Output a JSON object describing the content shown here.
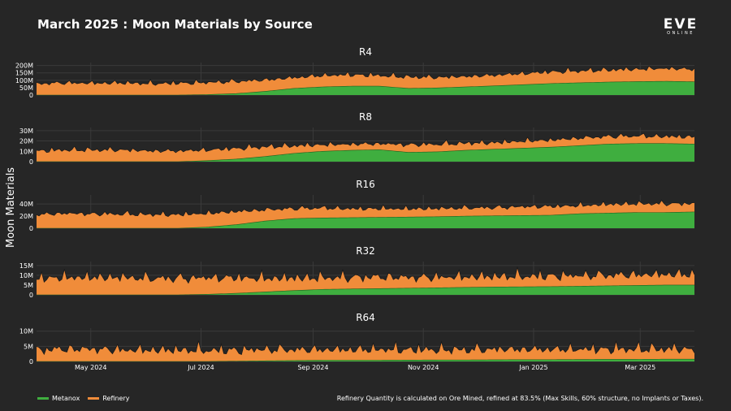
{
  "title": "March 2025 : Moon Materials by Source",
  "logo": {
    "main": "EVE",
    "sub": "ONLINE"
  },
  "ylabel": "Moon Materials",
  "note": "Refinery Quantity is calculated on Ore Mined, refined at 83.5% (Max Skills, 60% structure, no Implants or Taxes).",
  "colors": {
    "metanox": "#3fae3f",
    "refinery": "#f08c3a",
    "grid": "#3a3a3a",
    "background": "#262626"
  },
  "legend": [
    {
      "label": "Metanox",
      "color": "#3fae3f"
    },
    {
      "label": "Refinery",
      "color": "#f08c3a"
    }
  ],
  "chart_data": [
    {
      "type": "area",
      "stacked": true,
      "title": "R4",
      "x_range": [
        "2024-04-01",
        "2025-03-31"
      ],
      "yticks": [
        0,
        50,
        100,
        150,
        200
      ],
      "ytick_labels": [
        "0",
        "50M",
        "100M",
        "150M",
        "200M"
      ],
      "ylim": [
        0,
        220
      ],
      "series": [
        {
          "name": "Metanox",
          "values": [
            0,
            0,
            0,
            0,
            0,
            0,
            3,
            10,
            25,
            45,
            55,
            60,
            60,
            45,
            48,
            55,
            62,
            70,
            78,
            83,
            88,
            91,
            93,
            90
          ]
        },
        {
          "name": "Refinery",
          "values": [
            75,
            80,
            78,
            80,
            75,
            78,
            80,
            80,
            75,
            70,
            75,
            75,
            70,
            75,
            70,
            68,
            70,
            73,
            77,
            78,
            80,
            82,
            85,
            82
          ]
        }
      ]
    },
    {
      "type": "area",
      "stacked": true,
      "title": "R8",
      "x_range": [
        "2024-04-01",
        "2025-03-31"
      ],
      "yticks": [
        0,
        10,
        20,
        30
      ],
      "ytick_labels": [
        "0",
        "10M",
        "20M",
        "30M"
      ],
      "ylim": [
        0,
        33
      ],
      "series": [
        {
          "name": "Metanox",
          "values": [
            0,
            0,
            0,
            0,
            0,
            0,
            1,
            2.5,
            5,
            8,
            10,
            11,
            11.5,
            9,
            9.5,
            11,
            12,
            13,
            14,
            15.5,
            17,
            17.5,
            17.5,
            17
          ]
        },
        {
          "name": "Refinery",
          "values": [
            10,
            11,
            11,
            11,
            10,
            10,
            10,
            10,
            9,
            7,
            6,
            5.5,
            5.5,
            7,
            7,
            6.5,
            6,
            6.5,
            6.5,
            7,
            7,
            7,
            6.5,
            6.5
          ]
        }
      ]
    },
    {
      "type": "area",
      "stacked": true,
      "title": "R16",
      "x_range": [
        "2024-04-01",
        "2025-03-31"
      ],
      "yticks": [
        0,
        20,
        40
      ],
      "ytick_labels": [
        "0",
        "20M",
        "40M"
      ],
      "ylim": [
        0,
        55
      ],
      "series": [
        {
          "name": "Metanox",
          "values": [
            0,
            0,
            0,
            0,
            0,
            0,
            2,
            6,
            12,
            16,
            17,
            17.5,
            18,
            18.5,
            19,
            20,
            20.5,
            21,
            21.5,
            24,
            25,
            26,
            26,
            27
          ]
        },
        {
          "name": "Refinery",
          "values": [
            22,
            24,
            23,
            23,
            22,
            22,
            22,
            21,
            18,
            16,
            16,
            14,
            14,
            13,
            13,
            13,
            13,
            14,
            14,
            13,
            14,
            14,
            14,
            13
          ]
        }
      ]
    },
    {
      "type": "area",
      "stacked": true,
      "title": "R32",
      "x_range": [
        "2024-04-01",
        "2025-03-31"
      ],
      "yticks": [
        0,
        5,
        10,
        15
      ],
      "ytick_labels": [
        "0",
        "5M",
        "10M",
        "15M"
      ],
      "ylim": [
        0,
        17
      ],
      "series": [
        {
          "name": "Metanox",
          "values": [
            0,
            0,
            0,
            0,
            0,
            0,
            0.3,
            0.8,
            1.5,
            2.2,
            2.8,
            3,
            3.2,
            3.4,
            3.6,
            3.8,
            4,
            4.1,
            4.2,
            4.4,
            4.6,
            4.8,
            5,
            5
          ]
        },
        {
          "name": "Refinery",
          "values": [
            8,
            8.5,
            8.5,
            8.5,
            8,
            8,
            8,
            7.5,
            6.5,
            6,
            5.5,
            5.5,
            5.5,
            5,
            5,
            5,
            5,
            5,
            5,
            5,
            5,
            5,
            5,
            5
          ]
        }
      ]
    },
    {
      "type": "area",
      "stacked": true,
      "title": "R64",
      "x_range": [
        "2024-04-01",
        "2025-03-31"
      ],
      "yticks": [
        0,
        5,
        10
      ],
      "ytick_labels": [
        "0",
        "5M",
        "10M"
      ],
      "ylim": [
        0,
        11
      ],
      "series": [
        {
          "name": "Metanox",
          "values": [
            0,
            0,
            0,
            0,
            0,
            0,
            0,
            0.1,
            0.2,
            0.3,
            0.4,
            0.4,
            0.4,
            0.45,
            0.5,
            0.5,
            0.55,
            0.6,
            0.6,
            0.65,
            0.7,
            0.7,
            0.75,
            0.75
          ]
        },
        {
          "name": "Refinery",
          "values": [
            3.5,
            3.8,
            3.8,
            3.5,
            3.5,
            3.5,
            3.4,
            3.3,
            3.5,
            3.3,
            3.2,
            3.2,
            3.3,
            3.2,
            3.1,
            3.1,
            3.2,
            3.1,
            3.1,
            3.1,
            3.1,
            3.1,
            3.1,
            3.1
          ]
        }
      ]
    }
  ],
  "x_axis": {
    "range": [
      "2024-04-01",
      "2025-03-31"
    ],
    "ticks": [
      {
        "label": "May 2024",
        "date": "2024-05-01"
      },
      {
        "label": "Jul 2024",
        "date": "2024-07-01"
      },
      {
        "label": "Sep 2024",
        "date": "2024-09-01"
      },
      {
        "label": "Nov 2024",
        "date": "2024-11-01"
      },
      {
        "label": "Jan 2025",
        "date": "2025-01-01"
      },
      {
        "label": "Mar 2025",
        "date": "2025-03-01"
      }
    ]
  }
}
